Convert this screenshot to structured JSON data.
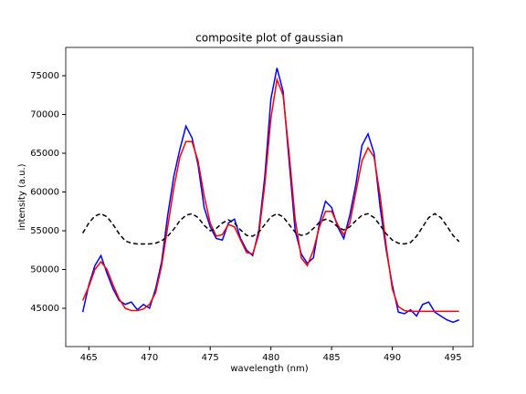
{
  "chart_data": {
    "type": "line",
    "title": "composite plot of gaussian",
    "xlabel": "wavelength (nm)",
    "ylabel": "intensity (a.u.)",
    "x": [
      464.5,
      465,
      465.5,
      466,
      466.5,
      467,
      467.5,
      468,
      468.5,
      469,
      469.5,
      470,
      470.5,
      471,
      471.5,
      472,
      472.5,
      473,
      473.5,
      474,
      474.5,
      475,
      475.5,
      476,
      476.5,
      477,
      477.5,
      478,
      478.5,
      479,
      479.5,
      480,
      480.5,
      481,
      481.5,
      482,
      482.5,
      483,
      483.5,
      484,
      484.5,
      485,
      485.5,
      486,
      486.5,
      487,
      487.5,
      488,
      488.5,
      489,
      489.5,
      490,
      490.5,
      491,
      491.5,
      492,
      492.5,
      493,
      493.5,
      494,
      494.5,
      495,
      495.5
    ],
    "series": [
      {
        "color": "#0000ff",
        "dash": false,
        "values": [
          44500,
          48000,
          50500,
          51800,
          49500,
          47500,
          46000,
          45500,
          45800,
          44800,
          45500,
          45000,
          47500,
          51000,
          57000,
          62000,
          65500,
          68500,
          67000,
          63500,
          58000,
          55500,
          54000,
          53800,
          56000,
          56500,
          54000,
          52500,
          51800,
          55000,
          62000,
          72000,
          76000,
          73000,
          64000,
          55000,
          52000,
          50800,
          51500,
          56000,
          58800,
          58000,
          55500,
          54000,
          57000,
          61000,
          66000,
          67500,
          65000,
          58000,
          52500,
          48000,
          44500,
          44300,
          44800,
          44000,
          45500,
          45800,
          44500,
          44000,
          43500,
          43200,
          43500
        ]
      },
      {
        "color": "#ff0000",
        "dash": false,
        "values": [
          46000,
          47800,
          50000,
          51000,
          50000,
          48000,
          46200,
          45000,
          44700,
          44700,
          44900,
          45500,
          47000,
          50500,
          55500,
          60500,
          64500,
          66500,
          66500,
          64000,
          59500,
          56000,
          54300,
          54500,
          55800,
          55500,
          53800,
          52200,
          52000,
          54500,
          61000,
          69500,
          74500,
          72500,
          65000,
          56500,
          51500,
          50500,
          52500,
          55500,
          57500,
          57500,
          55800,
          54500,
          56000,
          60000,
          64000,
          65700,
          64500,
          59500,
          53000,
          47500,
          45200,
          44700,
          44600,
          44600,
          44600,
          44600,
          44600,
          44600,
          44600,
          44600,
          44600
        ]
      },
      {
        "color": "#000000",
        "dash": true,
        "values": [
          54700,
          56000,
          56900,
          57200,
          56800,
          55800,
          54600,
          53700,
          53400,
          53300,
          53300,
          53300,
          53400,
          53700,
          54300,
          55200,
          56300,
          57000,
          57200,
          56700,
          55700,
          55000,
          55300,
          56000,
          56400,
          56000,
          55100,
          54400,
          54300,
          54800,
          55800,
          56800,
          57200,
          56800,
          55800,
          54800,
          54400,
          54600,
          55300,
          56100,
          56500,
          56200,
          55500,
          55100,
          55500,
          56300,
          57000,
          57200,
          56700,
          55700,
          54600,
          53800,
          53400,
          53300,
          53500,
          54300,
          55500,
          56700,
          57200,
          56700,
          55600,
          54400,
          53600
        ]
      }
    ],
    "xlim": [
      463.1,
      496.65
    ],
    "xticks": [
      465,
      470,
      475,
      480,
      485,
      490,
      495
    ],
    "ylim": [
      40060,
      78650
    ],
    "yticks": [
      45000,
      50000,
      55000,
      60000,
      65000,
      70000,
      75000
    ]
  }
}
